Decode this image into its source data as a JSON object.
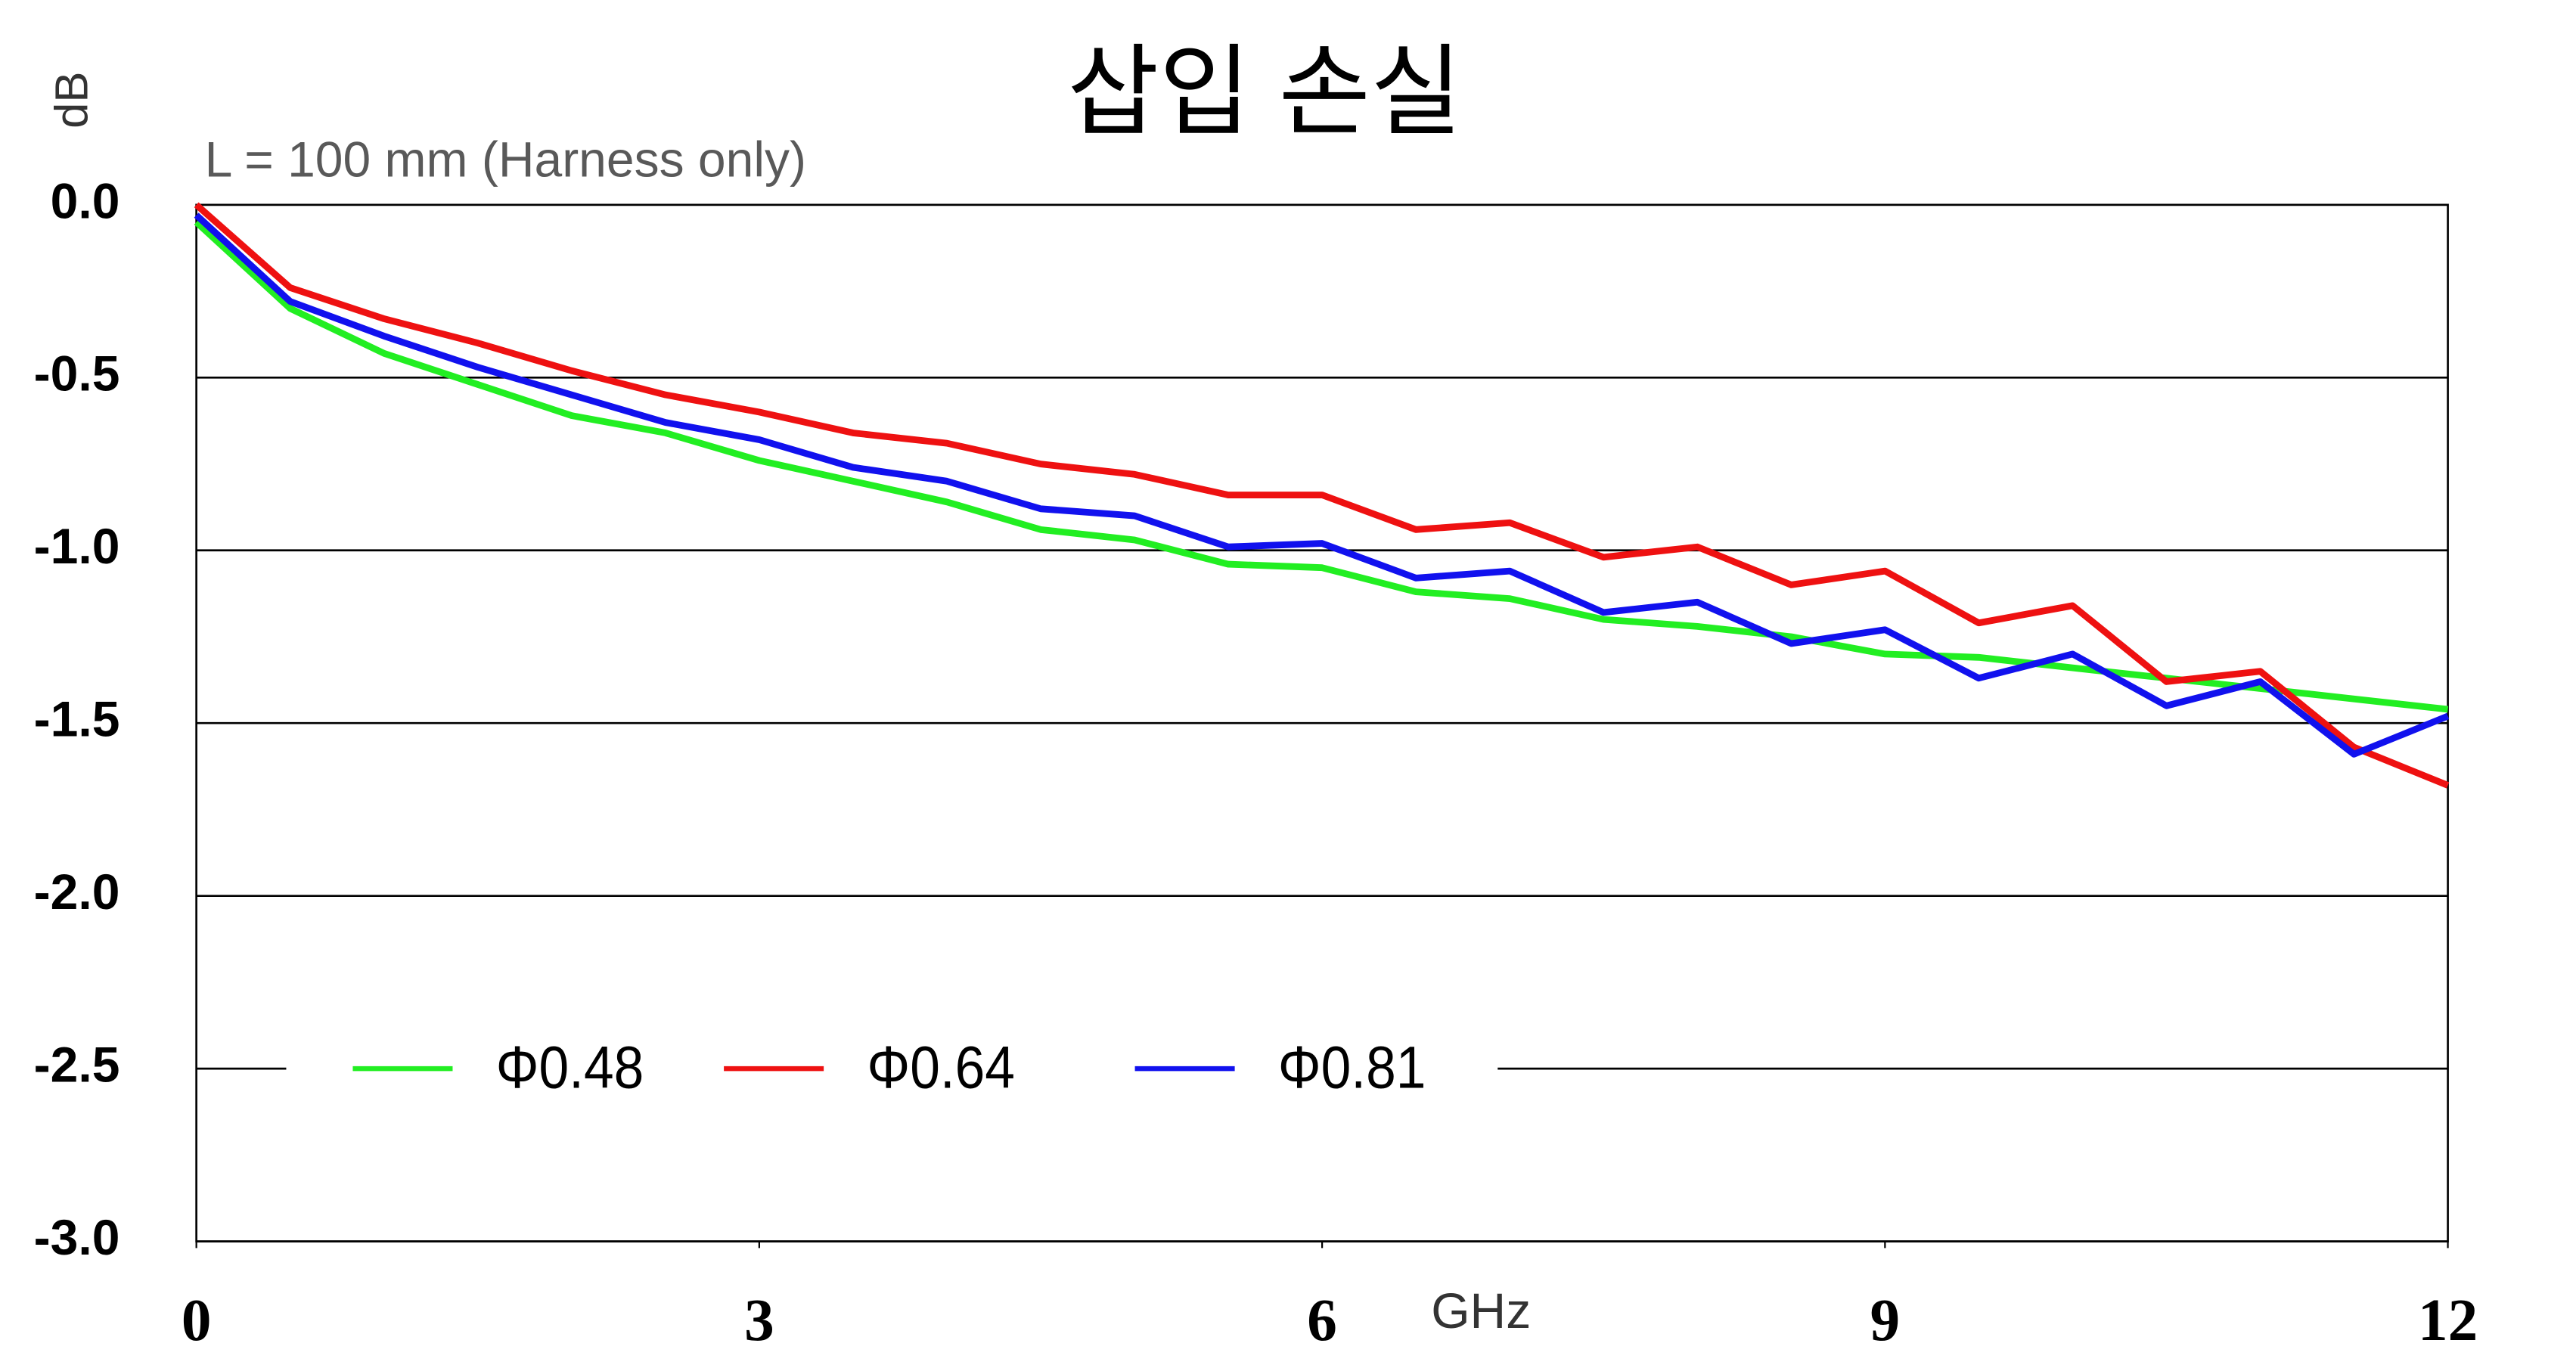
{
  "chart_data": {
    "type": "line",
    "title": "삽입 손실",
    "subtitle": "L = 100 mm (Harness only)",
    "x_label": "GHz",
    "y_label": "dB",
    "x": [
      0,
      0.5,
      1,
      1.5,
      2,
      2.5,
      3,
      3.5,
      4,
      4.5,
      5,
      5.5,
      6,
      6.5,
      7,
      7.5,
      8,
      8.5,
      9,
      9.5,
      10,
      10.5,
      11,
      11.5,
      12
    ],
    "series": [
      {
        "name": "Φ0.48",
        "color": "#22ee22",
        "values": [
          -0.05,
          -0.3,
          -0.43,
          -0.52,
          -0.61,
          -0.66,
          -0.74,
          -0.8,
          -0.86,
          -0.94,
          -0.97,
          -1.04,
          -1.05,
          -1.12,
          -1.14,
          -1.2,
          -1.22,
          -1.25,
          -1.3,
          -1.31,
          -1.34,
          -1.37,
          -1.4,
          -1.43,
          -1.46
        ]
      },
      {
        "name": "Φ0.64",
        "color": "#ee1111",
        "values": [
          0,
          -0.24,
          -0.33,
          -0.4,
          -0.48,
          -0.55,
          -0.6,
          -0.66,
          -0.69,
          -0.75,
          -0.78,
          -0.84,
          -0.84,
          -0.94,
          -0.92,
          -1.02,
          -0.99,
          -1.1,
          -1.06,
          -1.21,
          -1.16,
          -1.38,
          -1.35,
          -1.57,
          -1.68
        ]
      },
      {
        "name": "Φ0.81",
        "color": "#1111ee",
        "values": [
          -0.03,
          -0.28,
          -0.38,
          -0.47,
          -0.55,
          -0.63,
          -0.68,
          -0.76,
          -0.8,
          -0.88,
          -0.9,
          -0.99,
          -0.98,
          -1.08,
          -1.06,
          -1.18,
          -1.15,
          -1.27,
          -1.23,
          -1.37,
          -1.3,
          -1.45,
          -1.38,
          -1.59,
          -1.48
        ]
      }
    ],
    "xlim": [
      0,
      12
    ],
    "xticks": [
      0,
      3,
      6,
      9,
      12
    ],
    "ylim": [
      -3,
      0
    ],
    "yticks": [
      {
        "value": 0,
        "label": "0.0"
      },
      -0.5,
      {
        "value": -1,
        "label": "-1.0"
      },
      -1.5,
      {
        "value": -2,
        "label": "-2.0"
      },
      -2.5,
      {
        "value": -3,
        "label": "-3.0"
      }
    ],
    "grid": true,
    "legend": "bottom"
  }
}
